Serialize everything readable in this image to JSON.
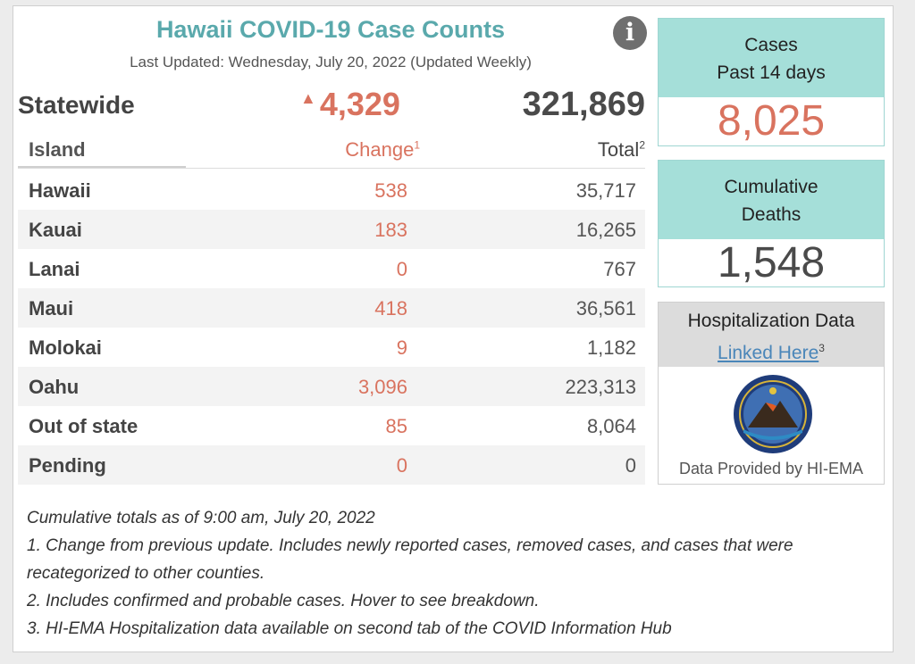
{
  "header": {
    "title": "Hawaii COVID-19 Case Counts",
    "last_updated": "Last Updated: Wednesday, July 20, 2022 (Updated Weekly)",
    "info_icon": "info-icon"
  },
  "statewide": {
    "label": "Statewide",
    "change": "4,329",
    "total": "321,869"
  },
  "table": {
    "columns": {
      "island": "Island",
      "change": "Change",
      "change_sup": "1",
      "total": "Total",
      "total_sup": "2"
    },
    "rows": [
      {
        "island": "Hawaii",
        "change": "538",
        "total": "35,717"
      },
      {
        "island": "Kauai",
        "change": "183",
        "total": "16,265"
      },
      {
        "island": "Lanai",
        "change": "0",
        "total": "767"
      },
      {
        "island": "Maui",
        "change": "418",
        "total": "36,561"
      },
      {
        "island": "Molokai",
        "change": "9",
        "total": "1,182"
      },
      {
        "island": "Oahu",
        "change": "3,096",
        "total": "223,313"
      },
      {
        "island": "Out of state",
        "change": "85",
        "total": "8,064"
      },
      {
        "island": "Pending",
        "change": "0",
        "total": "0"
      }
    ]
  },
  "cases_box": {
    "line1": "Cases",
    "line2": "Past 14 days",
    "value": "8,025"
  },
  "deaths_box": {
    "line1": "Cumulative",
    "line2": "Deaths",
    "value": "1,548"
  },
  "hospitalization": {
    "title": "Hospitalization Data",
    "link": "Linked Here",
    "link_sup": "3",
    "provided": "Data Provided by HI-EMA"
  },
  "notes": [
    "Cumulative totals as of 9:00 am, July 20, 2022",
    "1. Change from previous update. Includes newly reported cases, removed cases, and cases that were",
    "recategorized to other counties.",
    "2. Includes confirmed and probable cases. Hover to see breakdown.",
    "3. HI-EMA Hospitalization data available on second tab of the COVID Information Hub"
  ],
  "colors": {
    "title": "#5aa9ac",
    "change": "#d9735f",
    "box_header": "#a5dfd9"
  }
}
